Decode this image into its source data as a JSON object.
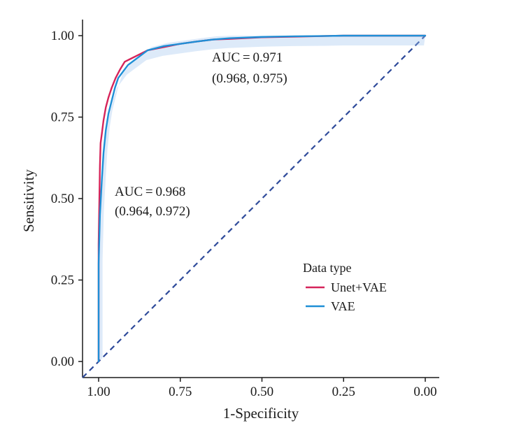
{
  "chart_data": {
    "type": "line",
    "xlabel": "1-Specificity",
    "ylabel": "Sensitivity",
    "xlim": [
      1.0,
      0.0
    ],
    "ylim": [
      0.0,
      1.0
    ],
    "x_reversed": true,
    "x_ticks": [
      "1.00",
      "0.75",
      "0.50",
      "0.25",
      "0.00"
    ],
    "x_tick_values": [
      1.0,
      0.75,
      0.5,
      0.25,
      0.0
    ],
    "y_ticks": [
      "0.00",
      "0.25",
      "0.50",
      "0.75",
      "1.00"
    ],
    "y_tick_values": [
      0.0,
      0.25,
      0.5,
      0.75,
      1.0
    ],
    "grid": false,
    "legend": {
      "title": "Data type",
      "position": "bottom-right",
      "entries": [
        "Unet+VAE",
        "VAE"
      ]
    },
    "series": [
      {
        "name": "Unet+VAE",
        "color": "#d6245a",
        "x": [
          1.0,
          1.0,
          0.996,
          0.994,
          0.99,
          0.985,
          0.978,
          0.97,
          0.96,
          0.948,
          0.935,
          0.92,
          0.9,
          0.88,
          0.85,
          0.8,
          0.75,
          0.7,
          0.65,
          0.6,
          0.5,
          0.4,
          0.3,
          0.25,
          0.0
        ],
        "y": [
          0.0,
          0.36,
          0.6,
          0.67,
          0.7,
          0.74,
          0.78,
          0.81,
          0.84,
          0.87,
          0.895,
          0.92,
          0.93,
          0.94,
          0.955,
          0.965,
          0.975,
          0.982,
          0.988,
          0.99,
          0.995,
          0.997,
          0.999,
          1.0,
          1.0
        ]
      },
      {
        "name": "VAE",
        "color": "#1f8fd6",
        "x": [
          1.0,
          1.0,
          0.996,
          0.99,
          0.985,
          0.978,
          0.97,
          0.96,
          0.95,
          0.94,
          0.925,
          0.91,
          0.89,
          0.87,
          0.85,
          0.8,
          0.75,
          0.7,
          0.65,
          0.6,
          0.5,
          0.4,
          0.3,
          0.25,
          0.0
        ],
        "y": [
          0.0,
          0.3,
          0.45,
          0.56,
          0.64,
          0.71,
          0.76,
          0.8,
          0.84,
          0.87,
          0.89,
          0.91,
          0.925,
          0.94,
          0.955,
          0.968,
          0.975,
          0.982,
          0.988,
          0.992,
          0.996,
          0.998,
          0.999,
          1.0,
          1.0
        ]
      }
    ],
    "reference_line": {
      "x": [
        1.0,
        0.0
      ],
      "y": [
        0.0,
        1.0
      ],
      "style": "dashed",
      "color": "#2e4a9a"
    },
    "annotations": [
      {
        "lines": [
          "AUC = 0.971",
          "(0.968, 0.975)"
        ]
      },
      {
        "lines": [
          "AUC = 0.968",
          "(0.964, 0.972)"
        ]
      }
    ]
  }
}
